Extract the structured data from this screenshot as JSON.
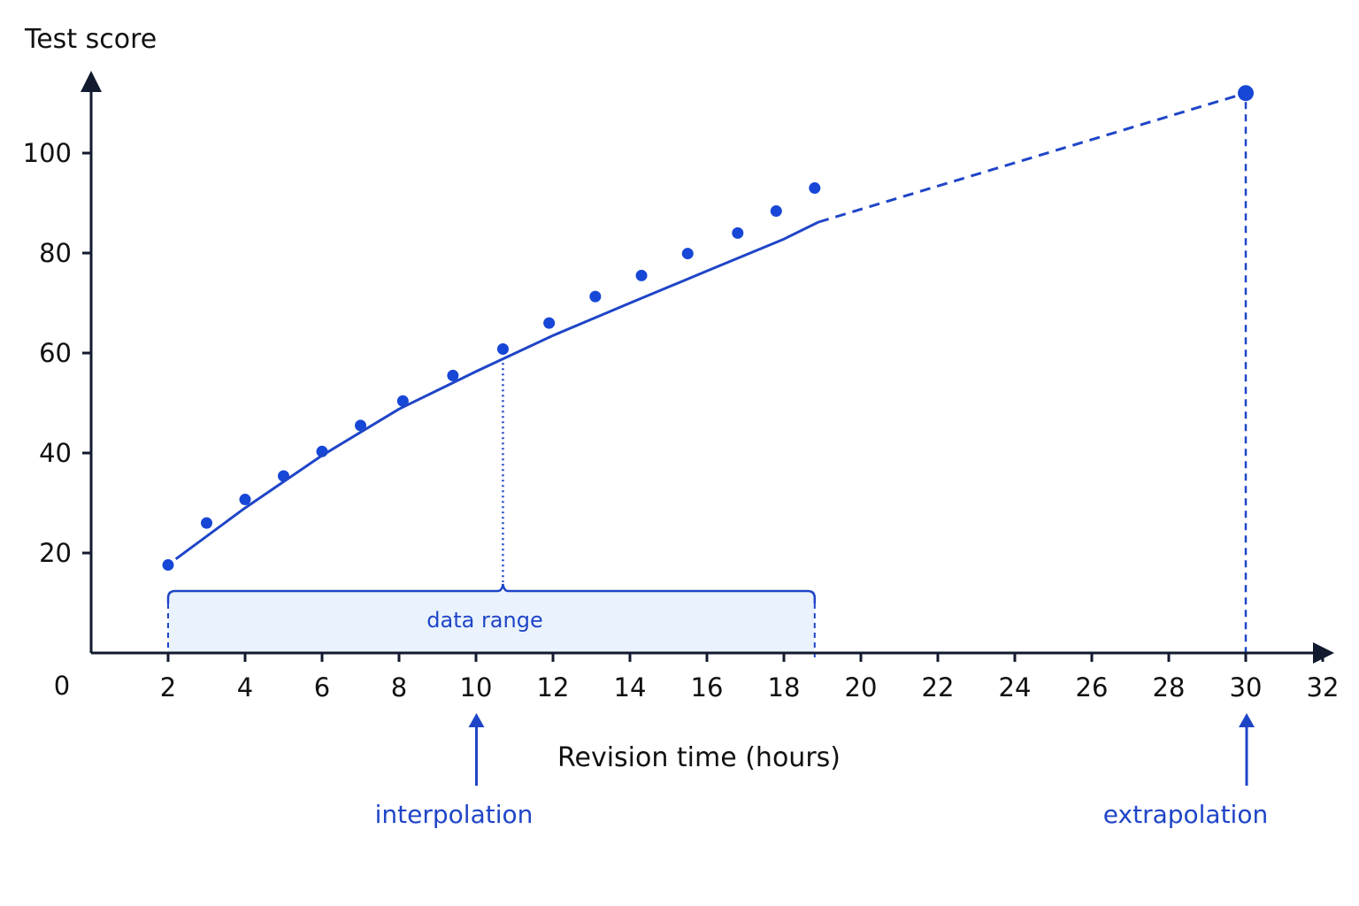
{
  "chart_data": {
    "type": "scatter",
    "title": "",
    "xlabel": "Revision time (hours)",
    "ylabel": "Test score",
    "origin_label": "0",
    "xlim": [
      0,
      34
    ],
    "ylim": [
      -14,
      120
    ],
    "x_ticks": [
      2,
      4,
      6,
      8,
      10,
      12,
      14,
      16,
      18,
      20,
      22,
      24,
      26,
      28,
      30,
      32
    ],
    "x_tick_labels": [
      "2",
      "4",
      "6",
      "8",
      "10",
      "12",
      "14",
      "16",
      "18",
      "20",
      "22",
      "24",
      "26",
      "28",
      "30",
      "32"
    ],
    "y_ticks": [
      20,
      40,
      60,
      80,
      100
    ],
    "y_tick_labels": [
      "20",
      "40",
      "60",
      "80",
      "100"
    ],
    "grid": false,
    "colors": {
      "accent": "#1f45c7",
      "point": "#1747d6",
      "axis": "#111a2e",
      "range_fill": "#eaf3fd"
    },
    "series": [
      {
        "kind": "points",
        "x": [
          2.0,
          3.0,
          4.0,
          5.0,
          6.0,
          7.0,
          8.1,
          9.4,
          10.7,
          11.9,
          13.1,
          14.3,
          15.5,
          16.8,
          17.8,
          18.8
        ],
        "y": [
          17.6,
          26.0,
          30.7,
          35.4,
          40.3,
          45.5,
          50.4,
          55.5,
          60.8,
          66.0,
          71.3,
          75.5,
          79.9,
          84.0,
          88.4,
          93.0
        ]
      },
      {
        "kind": "fit",
        "x": [
          2.2,
          4,
          6,
          8,
          10,
          12,
          14,
          16,
          18,
          18.9
        ],
        "y": [
          18.8,
          29.0,
          39.5,
          48.8,
          56.3,
          63.5,
          70.0,
          76.4,
          82.8,
          86.2
        ]
      },
      {
        "kind": "extrapolated",
        "x": [
          18.9,
          30.0
        ],
        "y": [
          86.2,
          112.0
        ]
      }
    ],
    "annotations": {
      "data_range_label": "data range",
      "data_range_x": [
        2.0,
        18.8
      ],
      "interpolation": {
        "label": "interpolation",
        "x": 10.0,
        "guide_x": 10.7,
        "guide_y": 58.0
      },
      "extrapolation": {
        "label": "extrapolation",
        "x": 30.0,
        "y": 112.0
      }
    }
  }
}
